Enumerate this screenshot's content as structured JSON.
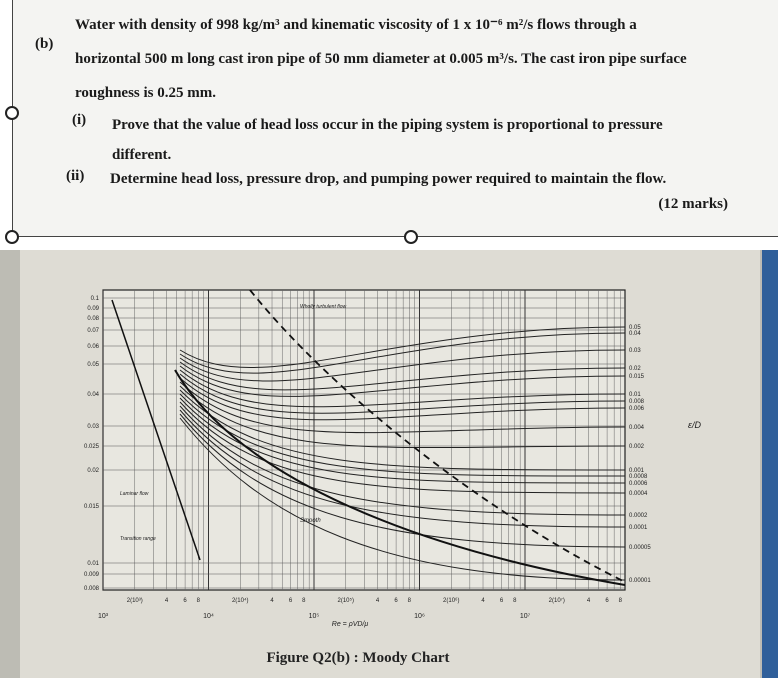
{
  "question": {
    "part": "(b)",
    "text": "Water with density of 998 kg/m³ and kinematic viscosity of 1 x 10⁻⁶ m²/s flows through a horizontal 500 m long cast iron pipe of 50 mm diameter at 0.005 m³/s. The cast iron pipe surface roughness is 0.25 mm.",
    "items": [
      {
        "label": "(i)",
        "text": "Prove that the value of head loss occur in the piping system is proportional to pressure different."
      },
      {
        "label": "(ii)",
        "text": "Determine head loss, pressure drop, and pumping power required to maintain the flow."
      }
    ],
    "marks": "(12 marks)"
  },
  "figure": {
    "y_labels": [
      "0.1",
      "0.09",
      "0.08",
      "0.07",
      "0.06",
      "0.05",
      "0.04",
      "0.03",
      "0.025",
      "0.02",
      "0.015",
      "0.01",
      "0.009",
      "0.008"
    ],
    "right_labels": [
      "0.05",
      "0.04",
      "0.03",
      "0.02",
      "0.015",
      "0.01",
      "0.008",
      "0.006",
      "0.004",
      "0.002",
      "0.001",
      "0.0008",
      "0.0006",
      "0.0004",
      "0.0002",
      "0.0001",
      "0.00005",
      "0.00001"
    ],
    "right_axis_label": "ε/D",
    "x_decades": [
      "10³",
      "10⁴",
      "10⁵",
      "10⁶",
      "10⁷"
    ],
    "x_minor_labels": [
      "2(10³)",
      "4",
      "6",
      "8",
      "2(10⁴)",
      "4",
      "6",
      "8",
      "2(10⁵)",
      "4",
      "6",
      "8",
      "2(10⁶)",
      "4",
      "6",
      "8",
      "2(10⁷)",
      "4",
      "6",
      "8"
    ],
    "x_axis_label": "Re = ρVD/μ",
    "annotations": [
      "Laminar flow",
      "Transition range",
      "Smooth",
      "Wholly turbulent flow"
    ],
    "caption": "Figure Q2(b) : Moody Chart"
  }
}
